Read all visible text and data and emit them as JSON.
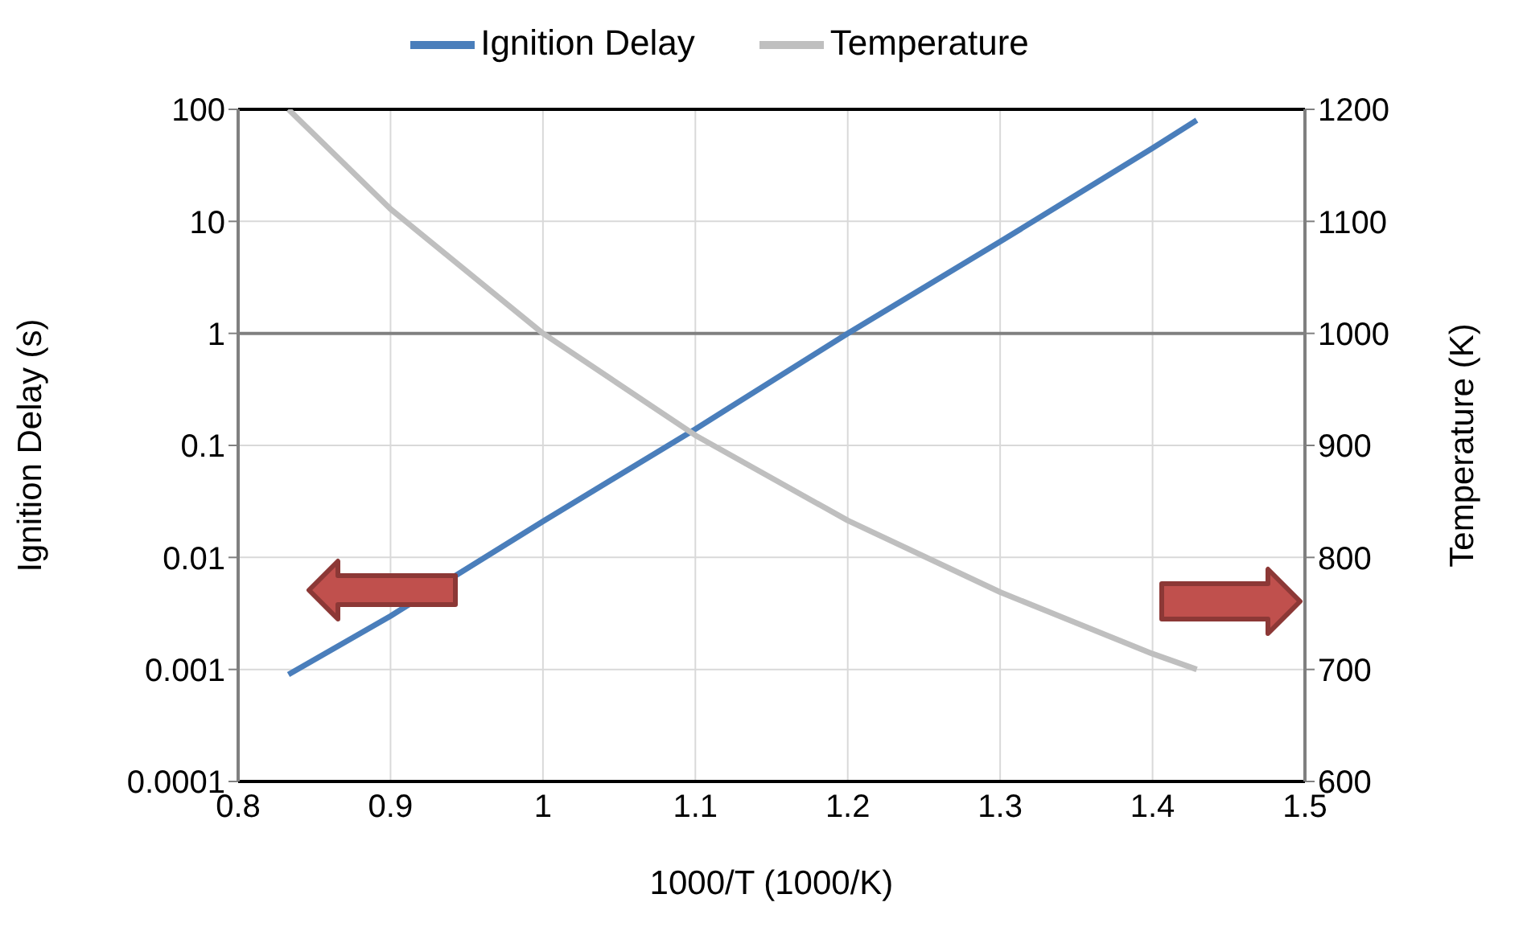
{
  "chart_data": {
    "type": "line",
    "xlabel": "1000/T  (1000/K)",
    "ylabel": "Ignition Delay (s)",
    "y2label": "Temperature (K)",
    "x": [
      0.833,
      0.9,
      1.0,
      1.1,
      1.2,
      1.3,
      1.4,
      1.429
    ],
    "series": [
      {
        "name": "Ignition Delay",
        "color": "#4a7ebb",
        "values": [
          0.0009,
          0.003,
          0.021,
          0.14,
          1,
          6.6,
          45,
          80
        ]
      },
      {
        "name": "Temperature",
        "color": "#bfbfbf",
        "axis": "y2",
        "values": [
          1200,
          1111,
          1000,
          909,
          833,
          769,
          714,
          700
        ]
      }
    ],
    "xlim": [
      0.8,
      1.5
    ],
    "xticks": [
      0.8,
      0.9,
      1,
      1.1,
      1.2,
      1.3,
      1.4,
      1.5
    ],
    "ylim": [
      0.0001,
      100
    ],
    "yticks": [
      0.0001,
      0.001,
      0.01,
      0.1,
      1,
      10,
      100
    ],
    "y2lim": [
      600,
      1200
    ],
    "y2ticks": [
      600,
      700,
      800,
      900,
      1000,
      1100,
      1200
    ],
    "log": "y",
    "grid": true,
    "legend": "top",
    "marker": "none",
    "line_style": "solid",
    "ref_lines": [
      {
        "axis": "y",
        "value": 1,
        "color": "#808080"
      }
    ]
  }
}
